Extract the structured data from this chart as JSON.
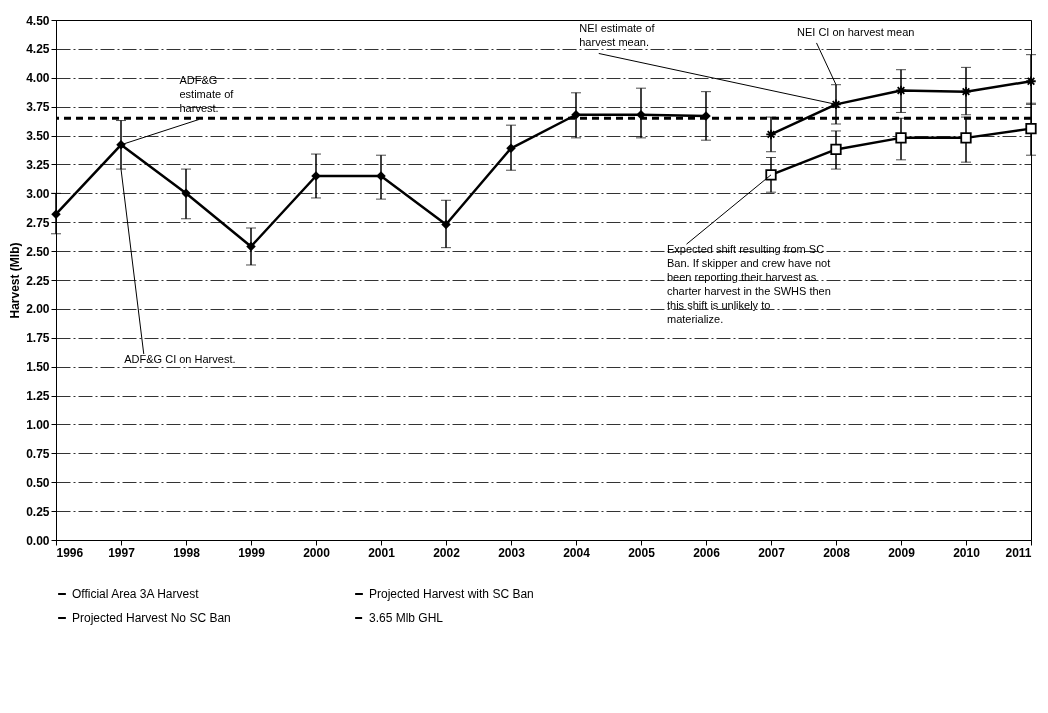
{
  "chart_data": {
    "type": "line",
    "ylabel": "Harvest (Mlb)",
    "xlim": [
      1996,
      2011
    ],
    "xticks": [
      1996,
      1997,
      1998,
      1999,
      2000,
      2001,
      2002,
      2003,
      2004,
      2005,
      2006,
      2007,
      2008,
      2009,
      2010,
      2011
    ],
    "ylim": [
      0,
      4.5
    ],
    "yticks": [
      {
        "value": 0,
        "label": "0.00"
      },
      {
        "value": 0.25,
        "label": "0.25"
      },
      {
        "value": 0.5,
        "label": "0.50"
      },
      {
        "value": 0.75,
        "label": "0.75"
      },
      {
        "value": 1,
        "label": "1.00"
      },
      {
        "value": 1.25,
        "label": "1.25"
      },
      {
        "value": 1.5,
        "label": "1.50"
      },
      {
        "value": 1.75,
        "label": "1.75"
      },
      {
        "value": 2,
        "label": "2.00"
      },
      {
        "value": 2.25,
        "label": "2.25"
      },
      {
        "value": 2.5,
        "label": "2.50"
      },
      {
        "value": 2.75,
        "label": "2.75"
      },
      {
        "value": 3,
        "label": "3.00"
      },
      {
        "value": 3.25,
        "label": "3.25"
      },
      {
        "value": 3.5,
        "label": "3.50"
      },
      {
        "value": 3.75,
        "label": "3.75"
      },
      {
        "value": 4,
        "label": "4.00"
      },
      {
        "value": 4.25,
        "label": "4.25"
      },
      {
        "value": 4.5,
        "label": "4.50"
      }
    ],
    "grid": "y",
    "legend": "bottom",
    "line_style": "solid",
    "series": [
      {
        "name": "Official Area 3A Harvest",
        "color": "#000000",
        "marker": "diamond",
        "x": [
          1996,
          1997,
          1998,
          1999,
          2000,
          2001,
          2002,
          2003,
          2004,
          2005,
          2006
        ],
        "values": [
          2.82,
          3.42,
          3.0,
          2.54,
          3.15,
          3.15,
          2.73,
          3.39,
          3.68,
          3.68,
          3.67
        ],
        "errors": [
          [
            2.65,
            3.0
          ],
          [
            3.21,
            3.63
          ],
          [
            2.78,
            3.21
          ],
          [
            2.38,
            2.7
          ],
          [
            2.96,
            3.34
          ],
          [
            2.95,
            3.33
          ],
          [
            2.53,
            2.94
          ],
          [
            3.2,
            3.59
          ],
          [
            3.48,
            3.87
          ],
          [
            3.48,
            3.91
          ],
          [
            3.46,
            3.88
          ]
        ]
      },
      {
        "name": "Projected Harvest with SC Ban",
        "color": "#000000",
        "marker": "square",
        "x": [
          2007,
          2008,
          2009,
          2010,
          2011
        ],
        "values": [
          3.16,
          3.38,
          3.48,
          3.48,
          3.56
        ],
        "errors": [
          [
            3.01,
            3.31
          ],
          [
            3.21,
            3.54
          ],
          [
            3.29,
            3.65
          ],
          [
            3.27,
            3.66
          ],
          [
            3.33,
            3.78
          ]
        ]
      },
      {
        "name": "Projected Harvest No SC Ban",
        "color": "#000000",
        "marker": "cross",
        "x": [
          2007,
          2008,
          2009,
          2010,
          2011
        ],
        "values": [
          3.51,
          3.77,
          3.89,
          3.88,
          3.97
        ],
        "errors": [
          [
            3.36,
            3.66
          ],
          [
            3.6,
            3.94
          ],
          [
            3.7,
            4.07
          ],
          [
            3.68,
            4.09
          ],
          [
            3.77,
            4.2
          ]
        ]
      }
    ],
    "ref_lines": [
      {
        "axis": "y",
        "value": 3.65,
        "label": "3.65 Mlb GHL",
        "color": "#000000",
        "line_style": "dashed"
      }
    ],
    "annotations": [
      {
        "text": "ADF&G estimate of harvest.",
        "x": 1997,
        "y": 3.42
      },
      {
        "text": "ADF&G CI on Harvest.",
        "x": 1997,
        "y": 3.21
      },
      {
        "text": "NEI estimate of harvest mean.",
        "x": 2008,
        "y": 3.77
      },
      {
        "text": "NEI CI on harvest mean",
        "x": 2008,
        "y": 3.94
      },
      {
        "text": "Expected shift resulting from SC Ban. If skipper and crew have not been reporting their harvest as charter harvest in the SWHS then this shift is unlikely to materialize.",
        "x": 2007,
        "y": 3.16
      }
    ]
  }
}
